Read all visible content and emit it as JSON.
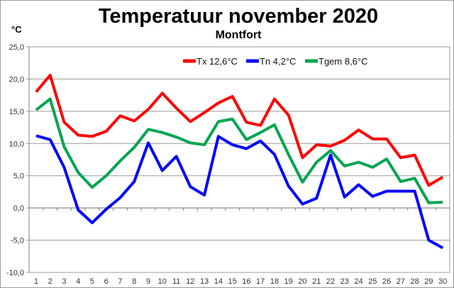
{
  "chart_data": {
    "type": "line",
    "title": "Temperatuur november 2020",
    "subtitle": "Montfort",
    "ylabel": "°C",
    "xlabel": "",
    "ylim": [
      -10,
      25
    ],
    "ytick_step": 5,
    "ytick_labels": [
      "25,0",
      "20,0",
      "15,0",
      "10,0",
      "5,0",
      "0,0",
      "-5,0",
      "-10,0"
    ],
    "grid": true,
    "legend_position": "top-right",
    "categories": [
      1,
      2,
      3,
      4,
      5,
      6,
      7,
      8,
      9,
      10,
      11,
      12,
      13,
      14,
      15,
      16,
      17,
      18,
      19,
      20,
      21,
      22,
      23,
      24,
      25,
      26,
      27,
      28,
      29,
      30
    ],
    "series": [
      {
        "name": "Tx 12,6°C",
        "color": "#ff0000",
        "values": [
          18.0,
          20.6,
          13.3,
          11.3,
          11.1,
          11.9,
          14.3,
          13.5,
          15.3,
          17.8,
          15.5,
          13.4,
          14.8,
          16.3,
          17.3,
          13.3,
          12.8,
          16.9,
          14.4,
          7.8,
          9.8,
          9.6,
          10.5,
          12.1,
          10.7,
          10.7,
          7.8,
          8.2,
          3.5,
          4.8
        ]
      },
      {
        "name": "Tn 4,2°C",
        "color": "#0000ff",
        "values": [
          11.2,
          10.6,
          6.3,
          -0.3,
          -2.3,
          -0.2,
          1.6,
          4.1,
          10.1,
          5.8,
          8.0,
          3.3,
          2.0,
          11.1,
          9.8,
          9.2,
          10.4,
          8.3,
          3.4,
          0.6,
          1.5,
          8.2,
          1.7,
          3.6,
          1.8,
          2.6,
          2.6,
          2.6,
          -5.0,
          -6.2
        ]
      },
      {
        "name": "Tgem 8,6°C",
        "color": "#00a550",
        "values": [
          15.2,
          16.9,
          9.5,
          5.5,
          3.2,
          5.0,
          7.3,
          9.4,
          12.2,
          11.7,
          11.0,
          10.1,
          9.8,
          13.4,
          13.8,
          10.6,
          11.7,
          12.9,
          8.3,
          4.0,
          7.1,
          8.9,
          6.5,
          7.1,
          6.3,
          7.6,
          4.1,
          4.6,
          0.8,
          0.9
        ]
      }
    ]
  }
}
